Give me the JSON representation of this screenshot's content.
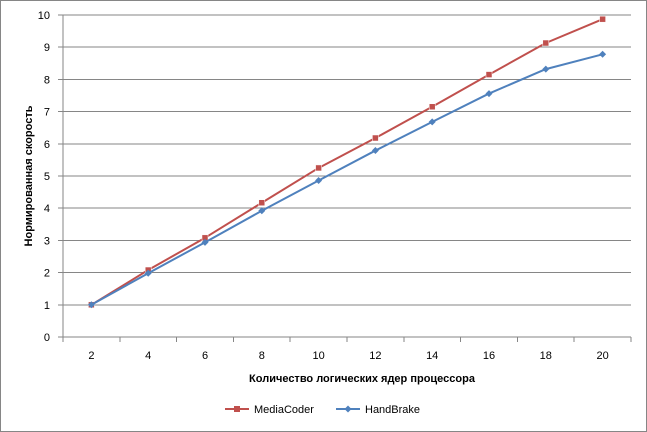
{
  "chart_data": {
    "type": "line",
    "title": "",
    "xlabel": "Количество  логических ядер процессора",
    "ylabel": "Нормированная  скорость",
    "x": [
      2,
      4,
      6,
      8,
      10,
      12,
      14,
      16,
      18,
      20
    ],
    "xlim": [
      1,
      21
    ],
    "ylim": [
      0,
      10
    ],
    "yticks": [
      0,
      1,
      2,
      3,
      4,
      5,
      6,
      7,
      8,
      9,
      10
    ],
    "grid": "horizontal",
    "legend_position": "bottom",
    "series": [
      {
        "name": "MediaCoder",
        "color": "#c0504d",
        "marker": "square",
        "values": [
          1.0,
          2.08,
          3.08,
          4.17,
          5.25,
          6.18,
          7.15,
          8.15,
          9.13,
          9.87
        ]
      },
      {
        "name": "HandBrake",
        "color": "#4f81bd",
        "marker": "diamond",
        "values": [
          1.0,
          1.98,
          2.94,
          3.92,
          4.86,
          5.79,
          6.68,
          7.56,
          8.32,
          8.78
        ]
      }
    ]
  }
}
